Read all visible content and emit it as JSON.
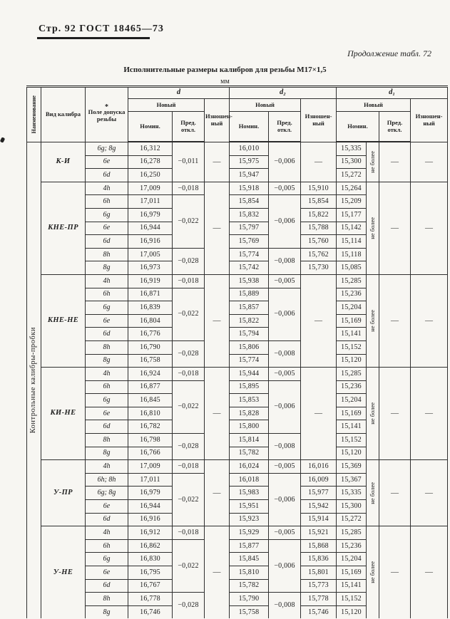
{
  "page": {
    "page_header": "Стр. 92 ГОСТ 18465—73",
    "continuation_note": "Продолжение табл. 72",
    "table_title": "Исполнительные размеры калибров для резьбы М17×1,5",
    "units_label": "мм"
  },
  "table": {
    "header": {
      "naimenovanie": "Наименование",
      "vid": "Вид калибра",
      "star": "*",
      "pole": "Поле допуска резьбы",
      "group_d": "d",
      "group_d2": "d₂",
      "group_d1": "d₁",
      "new": "Новый",
      "worn": "Изношен-ный",
      "nominal": "Номин.",
      "deviation": "Пред. откл."
    },
    "rotated_group_label": "Контрольные калибры-пробки",
    "ne_bolee_label": "не более",
    "dash": "—",
    "blocks": [
      {
        "name": "К-И",
        "d_pred": [
          {
            "span": 3,
            "v": "−0,011"
          }
        ],
        "d2_pred": [
          {
            "span": 3,
            "v": "−0,006"
          }
        ],
        "d2_worn_dash": true,
        "rows": [
          {
            "field": "6g; 8g",
            "d": "16,312",
            "d2": "16,010",
            "d1": "15,335"
          },
          {
            "field": "6e",
            "d": "16,278",
            "d2": "15,975",
            "d1": "15,300"
          },
          {
            "field": "6d",
            "d": "16,250",
            "d2": "15,947",
            "d1": "15,272"
          }
        ]
      },
      {
        "name": "КНЕ-ПР",
        "d_pred": [
          {
            "span": 1,
            "v": "−0,018"
          },
          {
            "span": 4,
            "v": "−0,022"
          },
          {
            "span": 2,
            "v": "−0,028"
          }
        ],
        "d2_pred": [
          {
            "span": 1,
            "v": "−0,005"
          },
          {
            "span": 4,
            "v": "−0,006"
          },
          {
            "span": 2,
            "v": "−0,008"
          }
        ],
        "d2_worn_dash": false,
        "rows": [
          {
            "field": "4h",
            "d": "17,009",
            "d2": "15,918",
            "d2w": "15,910",
            "d1": "15,264"
          },
          {
            "field": "6h",
            "d": "17,011",
            "d2": "15,854",
            "d2w": "15,854",
            "d1": "15,209"
          },
          {
            "field": "6g",
            "d": "16,979",
            "d2": "15,832",
            "d2w": "15,822",
            "d1": "15,177"
          },
          {
            "field": "6e",
            "d": "16,944",
            "d2": "15,797",
            "d2w": "15,788",
            "d1": "15,142"
          },
          {
            "field": "6d",
            "d": "16,916",
            "d2": "15,769",
            "d2w": "15,760",
            "d1": "15,114"
          },
          {
            "field": "8h",
            "d": "17,005",
            "d2": "15,774",
            "d2w": "15,762",
            "d1": "15,118"
          },
          {
            "field": "8g",
            "d": "16,973",
            "d2": "15,742",
            "d2w": "15,730",
            "d1": "15,085"
          }
        ]
      },
      {
        "name": "КНЕ-НЕ",
        "d_pred": [
          {
            "span": 1,
            "v": "−0,018"
          },
          {
            "span": 4,
            "v": "−0,022"
          },
          {
            "span": 2,
            "v": "−0,028"
          }
        ],
        "d2_pred": [
          {
            "span": 1,
            "v": "−0,005"
          },
          {
            "span": 4,
            "v": "−0,006"
          },
          {
            "span": 2,
            "v": "−0,008"
          }
        ],
        "d2_worn_dash": true,
        "rows": [
          {
            "field": "4h",
            "d": "16,919",
            "d2": "15,938",
            "d1": "15,285"
          },
          {
            "field": "6h",
            "d": "16,871",
            "d2": "15,889",
            "d1": "15,236"
          },
          {
            "field": "6g",
            "d": "16,839",
            "d2": "15,857",
            "d1": "15,204"
          },
          {
            "field": "6e",
            "d": "16,804",
            "d2": "15,822",
            "d1": "15,169"
          },
          {
            "field": "6d",
            "d": "16,776",
            "d2": "15,794",
            "d1": "15,141"
          },
          {
            "field": "8h",
            "d": "16,790",
            "d2": "15,806",
            "d1": "15,152"
          },
          {
            "field": "8g",
            "d": "16,758",
            "d2": "15,774",
            "d1": "15,120"
          }
        ]
      },
      {
        "name": "КИ-НЕ",
        "d_pred": [
          {
            "span": 1,
            "v": "−0,018"
          },
          {
            "span": 4,
            "v": "−0,022"
          },
          {
            "span": 2,
            "v": "−0,028"
          }
        ],
        "d2_pred": [
          {
            "span": 1,
            "v": "−0,005"
          },
          {
            "span": 4,
            "v": "−0,006"
          },
          {
            "span": 2,
            "v": "−0,008"
          }
        ],
        "d2_worn_dash": true,
        "rows": [
          {
            "field": "4h",
            "d": "16,924",
            "d2": "15,944",
            "d1": "15,285"
          },
          {
            "field": "6h",
            "d": "16,877",
            "d2": "15,895",
            "d1": "15,236"
          },
          {
            "field": "6g",
            "d": "16,845",
            "d2": "15,853",
            "d1": "15,204"
          },
          {
            "field": "6e",
            "d": "16,810",
            "d2": "15,828",
            "d1": "15,169"
          },
          {
            "field": "6d",
            "d": "16,782",
            "d2": "15,800",
            "d1": "15,141"
          },
          {
            "field": "8h",
            "d": "16,798",
            "d2": "15,814",
            "d1": "15,152"
          },
          {
            "field": "8g",
            "d": "16,766",
            "d2": "15,782",
            "d1": "15,120"
          }
        ]
      },
      {
        "name": "У-ПР",
        "d_pred": [
          {
            "span": 1,
            "v": "−0,018"
          },
          {
            "span": 4,
            "v": "−0,022"
          }
        ],
        "d2_pred": [
          {
            "span": 1,
            "v": "−0,005"
          },
          {
            "span": 4,
            "v": "−0,006"
          }
        ],
        "d2_worn_dash": false,
        "rows": [
          {
            "field": "4h",
            "d": "17,009",
            "d2": "16,024",
            "d2w": "16,016",
            "d1": "15,369"
          },
          {
            "field": "6h; 8h",
            "d": "17,011",
            "d2": "16,018",
            "d2w": "16,009",
            "d1": "15,367"
          },
          {
            "field": "6g; 8g",
            "d": "16,979",
            "d2": "15,983",
            "d2w": "15,977",
            "d1": "15,335"
          },
          {
            "field": "6e",
            "d": "16,944",
            "d2": "15,951",
            "d2w": "15,942",
            "d1": "15,300"
          },
          {
            "field": "6d",
            "d": "16,916",
            "d2": "15,923",
            "d2w": "15,914",
            "d1": "15,272"
          }
        ]
      },
      {
        "name": "У-НЕ",
        "d_pred": [
          {
            "span": 1,
            "v": "−0,018"
          },
          {
            "span": 4,
            "v": "−0,022"
          },
          {
            "span": 2,
            "v": "−0,028"
          }
        ],
        "d2_pred": [
          {
            "span": 1,
            "v": "−0,005"
          },
          {
            "span": 4,
            "v": "−0,006"
          },
          {
            "span": 2,
            "v": "−0,008"
          }
        ],
        "d2_worn_dash": false,
        "rows": [
          {
            "field": "4h",
            "d": "16,912",
            "d2": "15,929",
            "d2w": "15,921",
            "d1": "15,285"
          },
          {
            "field": "6h",
            "d": "16,862",
            "d2": "15,877",
            "d2w": "15,868",
            "d1": "15,236"
          },
          {
            "field": "6g",
            "d": "16,830",
            "d2": "15,845",
            "d2w": "15,836",
            "d1": "15,204"
          },
          {
            "field": "6e",
            "d": "16,795",
            "d2": "15,810",
            "d2w": "15,801",
            "d1": "15,169"
          },
          {
            "field": "6d",
            "d": "16,767",
            "d2": "15,782",
            "d2w": "15,773",
            "d1": "15,141"
          },
          {
            "field": "8h",
            "d": "16,778",
            "d2": "15,790",
            "d2w": "15,778",
            "d1": "15,152"
          },
          {
            "field": "8g",
            "d": "16,746",
            "d2": "15,758",
            "d2w": "15,746",
            "d1": "15,120"
          }
        ]
      }
    ]
  }
}
